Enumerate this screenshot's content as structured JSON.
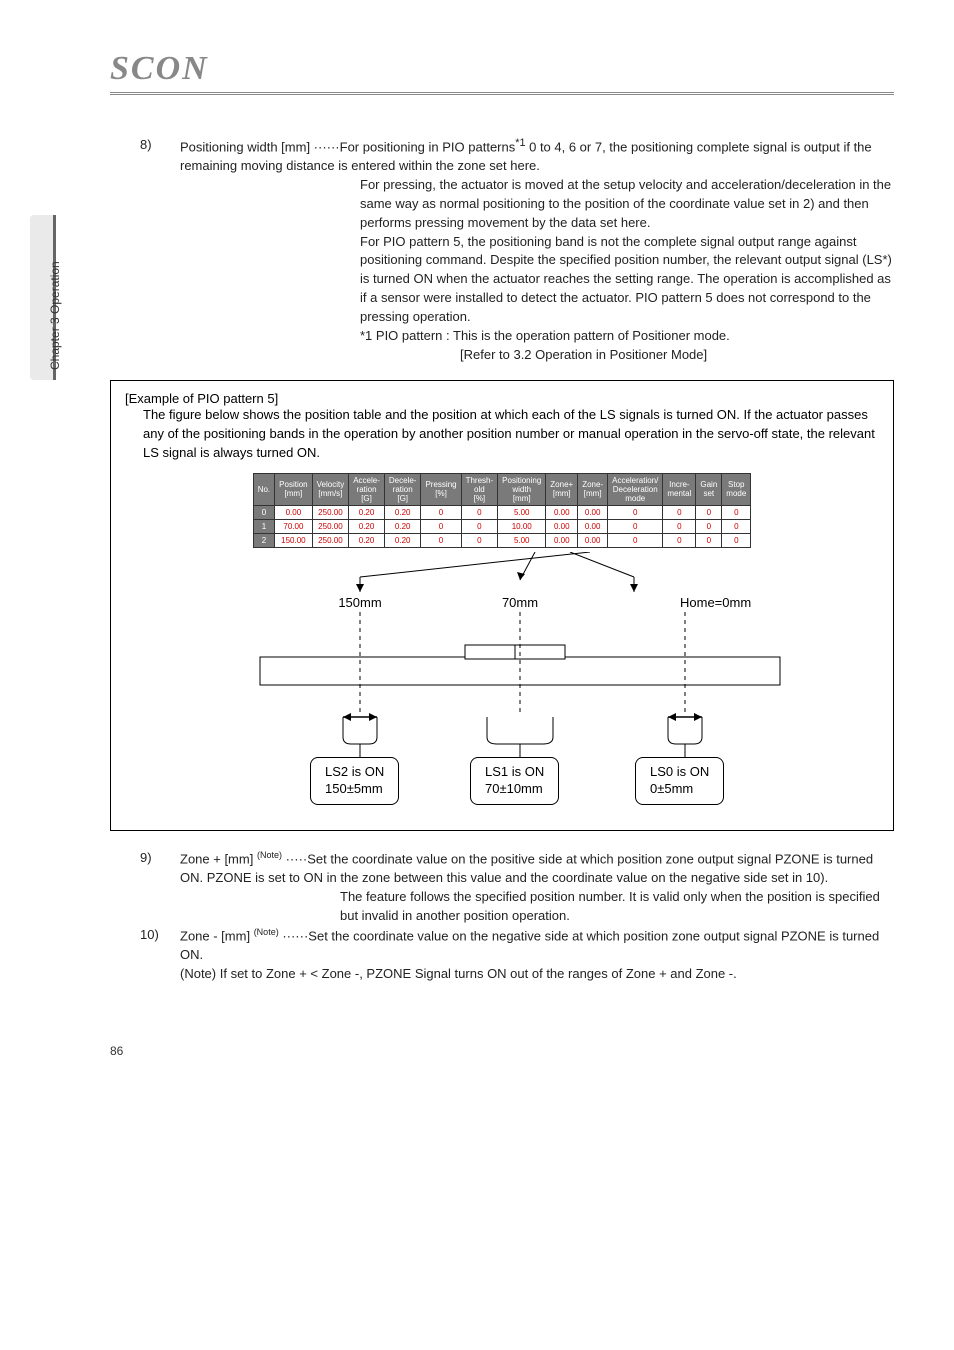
{
  "sidebar": {
    "label": "Chapter 3 Operation"
  },
  "logo": "SCON",
  "item8": {
    "num": "8)",
    "label": "Positioning width [mm] ······",
    "p1": "For positioning in PIO patterns",
    "sup": "*1",
    "p1b": " 0 to 4, 6 or 7, the positioning complete signal is output if the remaining moving distance is entered within the zone set here.",
    "p2": "For pressing, the actuator is moved at the setup velocity and acceleration/deceleration in the same way as normal positioning to the position of the coordinate value set in 2) and then performs pressing movement by the data set here.",
    "p3": "For PIO pattern 5, the positioning band is not the complete signal output range against positioning command. Despite the specified position number, the relevant output signal (LS*) is turned ON when the actuator reaches the setting range. The operation is accomplished as if a sensor were installed to detect the actuator. PIO pattern 5 does not correspond to the pressing operation.",
    "note_label": "*1 PIO pattern :",
    "note1": "This is the operation pattern of Positioner mode.",
    "note2": "[Refer to 3.2 Operation in Positioner Mode]"
  },
  "example": {
    "title": "[Example of PIO pattern 5]",
    "text": "The figure below shows the position table and the position at which each of the LS signals is turned ON. If the actuator passes any of the positioning bands in the operation by another position number or manual operation in the servo-off state, the relevant LS signal is always turned ON."
  },
  "table": {
    "headers": [
      "No.",
      "Position\n[mm]",
      "Velocity\n[mm/s]",
      "Accele-\nration\n[G]",
      "Decele-\nration\n[G]",
      "Pressing\n[%]",
      "Thresh-\nold\n[%]",
      "Positioning\nwidth\n[mm]",
      "Zone+\n[mm]",
      "Zone-\n[mm]",
      "Acceleration/\nDeceleration\nmode",
      "Incre-\nmental",
      "Gain\nset",
      "Stop\nmode"
    ],
    "rows": [
      [
        "0",
        "0.00",
        "250.00",
        "0.20",
        "0.20",
        "0",
        "0",
        "5.00",
        "0.00",
        "0.00",
        "0",
        "0",
        "0",
        "0"
      ],
      [
        "1",
        "70.00",
        "250.00",
        "0.20",
        "0.20",
        "0",
        "0",
        "10.00",
        "0.00",
        "0.00",
        "0",
        "0",
        "0",
        "0"
      ],
      [
        "2",
        "150.00",
        "250.00",
        "0.20",
        "0.20",
        "0",
        "0",
        "5.00",
        "0.00",
        "0.00",
        "0",
        "0",
        "0",
        "0"
      ]
    ]
  },
  "diagram": {
    "l150": "150mm",
    "l70": "70mm",
    "lhome": "Home=0mm",
    "ls2_a": "LS2 is ON",
    "ls2_b": "150±5mm",
    "ls1_a": "LS1 is ON",
    "ls1_b": "70±10mm",
    "ls0_a": "LS0 is ON",
    "ls0_b": "0±5mm"
  },
  "item9": {
    "num": "9)",
    "label": "Zone + [mm] ",
    "sup": "(Note)",
    "dots": " ·····",
    "p1": "Set the coordinate value on the positive side at which position zone output signal PZONE is turned ON. PZONE is set to ON in the zone between this value and the coordinate value on the negative side set in 10).",
    "p2": "The feature follows the specified position number. It is valid only when the position is specified but invalid in another position operation."
  },
  "item10": {
    "num": "10)",
    "label": "Zone - [mm] ",
    "sup": "(Note)",
    "dots": " ······",
    "p1": "Set the coordinate value on the negative side at which position zone output signal PZONE is turned ON."
  },
  "note_final": "(Note) If set to Zone + < Zone -, PZONE Signal turns ON out of the ranges of Zone + and Zone -.",
  "page_number": "86"
}
